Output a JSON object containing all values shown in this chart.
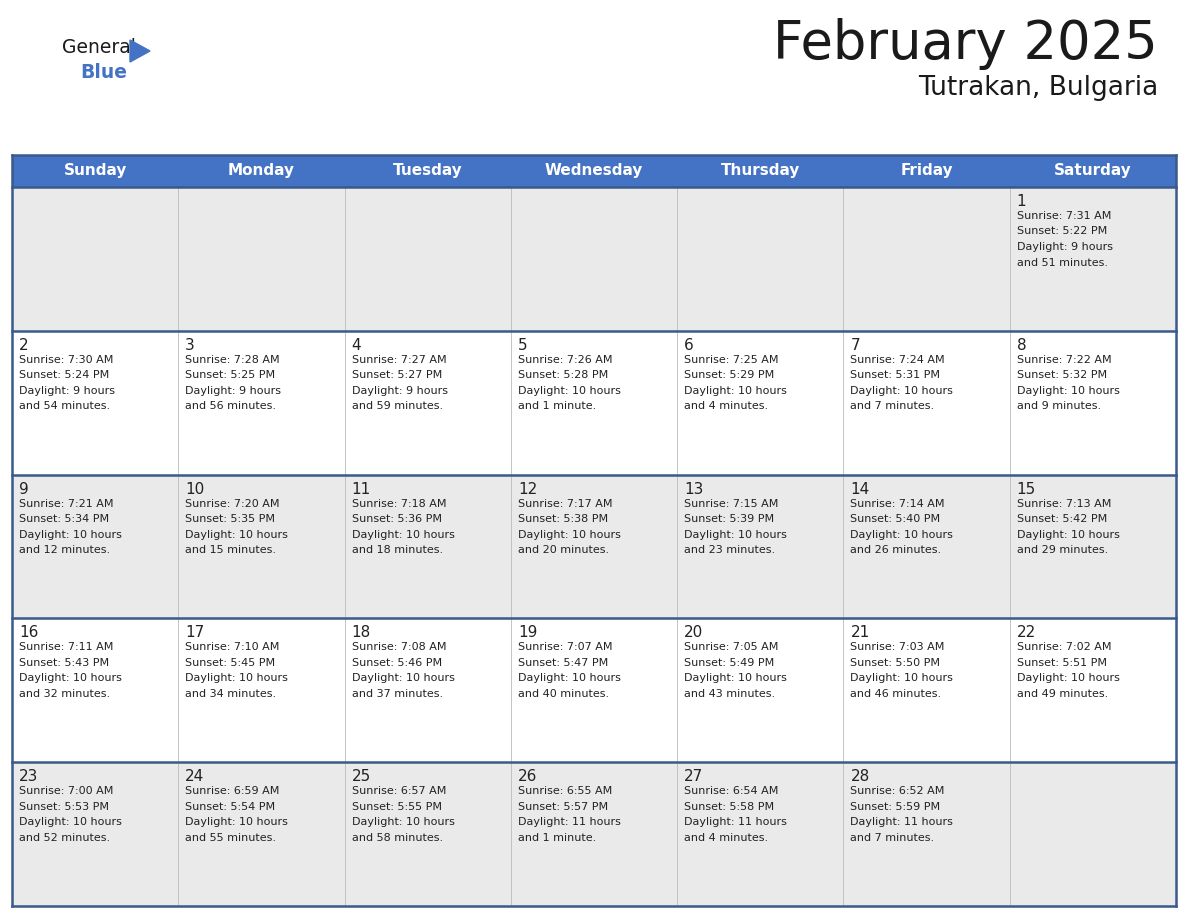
{
  "title": "February 2025",
  "subtitle": "Tutrakan, Bulgaria",
  "header_bg": "#4472C4",
  "header_text_color": "#FFFFFF",
  "days_of_week": [
    "Sunday",
    "Monday",
    "Tuesday",
    "Wednesday",
    "Thursday",
    "Friday",
    "Saturday"
  ],
  "cell_bg_even": "#EAEAEA",
  "cell_bg_odd": "#FFFFFF",
  "day_number_color": "#222222",
  "info_text_color": "#222222",
  "border_color": "#3A5A8C",
  "calendar_data": [
    [
      {
        "day": null,
        "sunrise": null,
        "sunset": null,
        "daylight": null
      },
      {
        "day": null,
        "sunrise": null,
        "sunset": null,
        "daylight": null
      },
      {
        "day": null,
        "sunrise": null,
        "sunset": null,
        "daylight": null
      },
      {
        "day": null,
        "sunrise": null,
        "sunset": null,
        "daylight": null
      },
      {
        "day": null,
        "sunrise": null,
        "sunset": null,
        "daylight": null
      },
      {
        "day": null,
        "sunrise": null,
        "sunset": null,
        "daylight": null
      },
      {
        "day": 1,
        "sunrise": "7:31 AM",
        "sunset": "5:22 PM",
        "daylight": "9 hours\nand 51 minutes."
      }
    ],
    [
      {
        "day": 2,
        "sunrise": "7:30 AM",
        "sunset": "5:24 PM",
        "daylight": "9 hours\nand 54 minutes."
      },
      {
        "day": 3,
        "sunrise": "7:28 AM",
        "sunset": "5:25 PM",
        "daylight": "9 hours\nand 56 minutes."
      },
      {
        "day": 4,
        "sunrise": "7:27 AM",
        "sunset": "5:27 PM",
        "daylight": "9 hours\nand 59 minutes."
      },
      {
        "day": 5,
        "sunrise": "7:26 AM",
        "sunset": "5:28 PM",
        "daylight": "10 hours\nand 1 minute."
      },
      {
        "day": 6,
        "sunrise": "7:25 AM",
        "sunset": "5:29 PM",
        "daylight": "10 hours\nand 4 minutes."
      },
      {
        "day": 7,
        "sunrise": "7:24 AM",
        "sunset": "5:31 PM",
        "daylight": "10 hours\nand 7 minutes."
      },
      {
        "day": 8,
        "sunrise": "7:22 AM",
        "sunset": "5:32 PM",
        "daylight": "10 hours\nand 9 minutes."
      }
    ],
    [
      {
        "day": 9,
        "sunrise": "7:21 AM",
        "sunset": "5:34 PM",
        "daylight": "10 hours\nand 12 minutes."
      },
      {
        "day": 10,
        "sunrise": "7:20 AM",
        "sunset": "5:35 PM",
        "daylight": "10 hours\nand 15 minutes."
      },
      {
        "day": 11,
        "sunrise": "7:18 AM",
        "sunset": "5:36 PM",
        "daylight": "10 hours\nand 18 minutes."
      },
      {
        "day": 12,
        "sunrise": "7:17 AM",
        "sunset": "5:38 PM",
        "daylight": "10 hours\nand 20 minutes."
      },
      {
        "day": 13,
        "sunrise": "7:15 AM",
        "sunset": "5:39 PM",
        "daylight": "10 hours\nand 23 minutes."
      },
      {
        "day": 14,
        "sunrise": "7:14 AM",
        "sunset": "5:40 PM",
        "daylight": "10 hours\nand 26 minutes."
      },
      {
        "day": 15,
        "sunrise": "7:13 AM",
        "sunset": "5:42 PM",
        "daylight": "10 hours\nand 29 minutes."
      }
    ],
    [
      {
        "day": 16,
        "sunrise": "7:11 AM",
        "sunset": "5:43 PM",
        "daylight": "10 hours\nand 32 minutes."
      },
      {
        "day": 17,
        "sunrise": "7:10 AM",
        "sunset": "5:45 PM",
        "daylight": "10 hours\nand 34 minutes."
      },
      {
        "day": 18,
        "sunrise": "7:08 AM",
        "sunset": "5:46 PM",
        "daylight": "10 hours\nand 37 minutes."
      },
      {
        "day": 19,
        "sunrise": "7:07 AM",
        "sunset": "5:47 PM",
        "daylight": "10 hours\nand 40 minutes."
      },
      {
        "day": 20,
        "sunrise": "7:05 AM",
        "sunset": "5:49 PM",
        "daylight": "10 hours\nand 43 minutes."
      },
      {
        "day": 21,
        "sunrise": "7:03 AM",
        "sunset": "5:50 PM",
        "daylight": "10 hours\nand 46 minutes."
      },
      {
        "day": 22,
        "sunrise": "7:02 AM",
        "sunset": "5:51 PM",
        "daylight": "10 hours\nand 49 minutes."
      }
    ],
    [
      {
        "day": 23,
        "sunrise": "7:00 AM",
        "sunset": "5:53 PM",
        "daylight": "10 hours\nand 52 minutes."
      },
      {
        "day": 24,
        "sunrise": "6:59 AM",
        "sunset": "5:54 PM",
        "daylight": "10 hours\nand 55 minutes."
      },
      {
        "day": 25,
        "sunrise": "6:57 AM",
        "sunset": "5:55 PM",
        "daylight": "10 hours\nand 58 minutes."
      },
      {
        "day": 26,
        "sunrise": "6:55 AM",
        "sunset": "5:57 PM",
        "daylight": "11 hours\nand 1 minute."
      },
      {
        "day": 27,
        "sunrise": "6:54 AM",
        "sunset": "5:58 PM",
        "daylight": "11 hours\nand 4 minutes."
      },
      {
        "day": 28,
        "sunrise": "6:52 AM",
        "sunset": "5:59 PM",
        "daylight": "11 hours\nand 7 minutes."
      },
      {
        "day": null,
        "sunrise": null,
        "sunset": null,
        "daylight": null
      }
    ]
  ],
  "logo_general_color": "#1a1a1a",
  "logo_blue_color": "#4472C4",
  "logo_triangle_color": "#4472C4",
  "title_color": "#1a1a1a",
  "subtitle_color": "#1a1a1a"
}
